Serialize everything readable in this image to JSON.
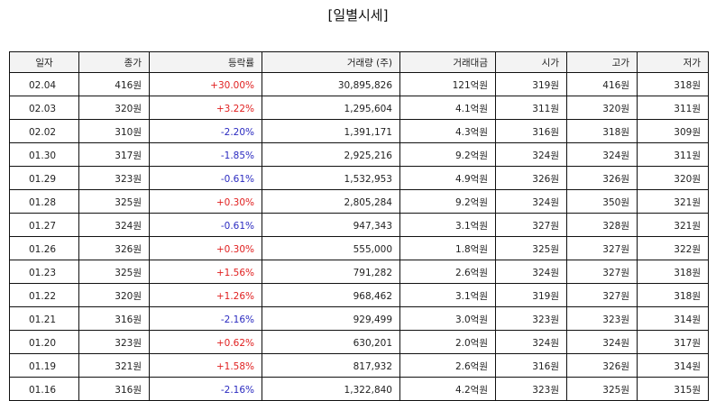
{
  "title": "[일별시세]",
  "headers": [
    "일자",
    "종가",
    "등락률",
    "거래량 (주)",
    "거래대금",
    "시가",
    "고가",
    "저가"
  ],
  "rows": [
    {
      "date": "02.04",
      "close": "416원",
      "change": "+30.00%",
      "dir": "up",
      "volume": "30,895,826",
      "amount": "121억원",
      "open": "319원",
      "high": "416원",
      "low": "318원"
    },
    {
      "date": "02.03",
      "close": "320원",
      "change": "+3.22%",
      "dir": "up",
      "volume": "1,295,604",
      "amount": "4.1억원",
      "open": "311원",
      "high": "320원",
      "low": "311원"
    },
    {
      "date": "02.02",
      "close": "310원",
      "change": "-2.20%",
      "dir": "down",
      "volume": "1,391,171",
      "amount": "4.3억원",
      "open": "316원",
      "high": "318원",
      "low": "309원"
    },
    {
      "date": "01.30",
      "close": "317원",
      "change": "-1.85%",
      "dir": "down",
      "volume": "2,925,216",
      "amount": "9.2억원",
      "open": "324원",
      "high": "324원",
      "low": "311원"
    },
    {
      "date": "01.29",
      "close": "323원",
      "change": "-0.61%",
      "dir": "down",
      "volume": "1,532,953",
      "amount": "4.9억원",
      "open": "326원",
      "high": "326원",
      "low": "320원"
    },
    {
      "date": "01.28",
      "close": "325원",
      "change": "+0.30%",
      "dir": "up",
      "volume": "2,805,284",
      "amount": "9.2억원",
      "open": "324원",
      "high": "350원",
      "low": "321원"
    },
    {
      "date": "01.27",
      "close": "324원",
      "change": "-0.61%",
      "dir": "down",
      "volume": "947,343",
      "amount": "3.1억원",
      "open": "327원",
      "high": "328원",
      "low": "321원"
    },
    {
      "date": "01.26",
      "close": "326원",
      "change": "+0.30%",
      "dir": "up",
      "volume": "555,000",
      "amount": "1.8억원",
      "open": "325원",
      "high": "327원",
      "low": "322원"
    },
    {
      "date": "01.23",
      "close": "325원",
      "change": "+1.56%",
      "dir": "up",
      "volume": "791,282",
      "amount": "2.6억원",
      "open": "324원",
      "high": "327원",
      "low": "318원"
    },
    {
      "date": "01.22",
      "close": "320원",
      "change": "+1.26%",
      "dir": "up",
      "volume": "968,462",
      "amount": "3.1억원",
      "open": "319원",
      "high": "327원",
      "low": "318원"
    },
    {
      "date": "01.21",
      "close": "316원",
      "change": "-2.16%",
      "dir": "down",
      "volume": "929,499",
      "amount": "3.0억원",
      "open": "323원",
      "high": "323원",
      "low": "314원"
    },
    {
      "date": "01.20",
      "close": "323원",
      "change": "+0.62%",
      "dir": "up",
      "volume": "630,201",
      "amount": "2.0억원",
      "open": "324원",
      "high": "324원",
      "low": "317원"
    },
    {
      "date": "01.19",
      "close": "321원",
      "change": "+1.58%",
      "dir": "up",
      "volume": "817,932",
      "amount": "2.6억원",
      "open": "316원",
      "high": "326원",
      "low": "314원"
    },
    {
      "date": "01.16",
      "close": "316원",
      "change": "-2.16%",
      "dir": "down",
      "volume": "1,322,840",
      "amount": "4.2억원",
      "open": "323원",
      "high": "325원",
      "low": "315원"
    }
  ],
  "colors": {
    "up": "#e02020",
    "down": "#2b2bc0"
  }
}
